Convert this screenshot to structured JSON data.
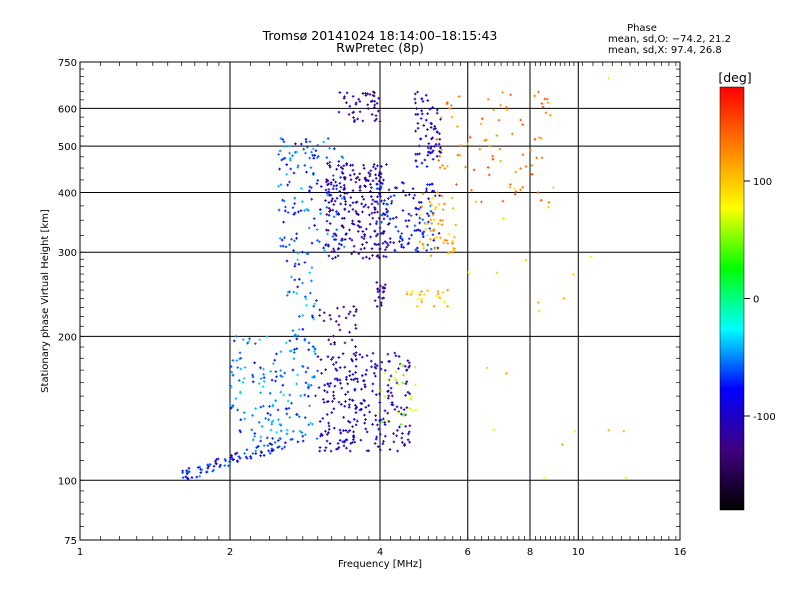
{
  "chart_data": {
    "type": "scatter",
    "title": "Tromsø 20141024 18:14:00–18:15:43",
    "subtitle": "RwPretec (8p)",
    "xlabel": "Frequency [MHz]",
    "ylabel": "Stationary phase Virtual Height [km]",
    "x_scale": "log",
    "y_scale": "log",
    "xlim": [
      1,
      16
    ],
    "ylim": [
      75,
      750
    ],
    "x_ticks": [
      1,
      2,
      4,
      6,
      8,
      10,
      16
    ],
    "x_tick_labels": [
      "1",
      "2",
      "4",
      "6",
      "8",
      "10",
      "16"
    ],
    "y_ticks": [
      75,
      100,
      200,
      300,
      400,
      500,
      600,
      750
    ],
    "y_tick_labels": [
      "75",
      "100",
      "200",
      "300",
      "400",
      "500",
      "600",
      "750"
    ],
    "x_gridlines": [
      2,
      4,
      6,
      8,
      10
    ],
    "y_gridlines": [
      100,
      200,
      300,
      400,
      500,
      600
    ],
    "grid": true,
    "phase_stats": {
      "heading": "Phase",
      "line_o": "mean, sd,O: −74.2, 21.2",
      "line_x": "mean, sd,X:  97.4, 26.8"
    },
    "colorbar": {
      "label": "[deg]",
      "range": [
        -180,
        180
      ],
      "ticks": [
        100,
        0,
        -100
      ],
      "tick_labels": [
        "100",
        "0",
        "-100"
      ],
      "colors": [
        "#ff0000",
        "#ff8000",
        "#ffff00",
        "#00ff00",
        "#00ffff",
        "#0000ff",
        "#400080",
        "#000000"
      ]
    },
    "clusters": [
      {
        "x": [
          1.6,
          2.6
        ],
        "y": [
          102,
          120
        ],
        "phase": -70,
        "n": 90,
        "shape": "trace"
      },
      {
        "x": [
          2.0,
          3.0
        ],
        "y": [
          120,
          200
        ],
        "phase": -55,
        "n": 170
      },
      {
        "x": [
          3.0,
          4.6
        ],
        "y": [
          115,
          185
        ],
        "phase": -100,
        "n": 260
      },
      {
        "x": [
          3.0,
          3.6
        ],
        "y": [
          190,
          235
        ],
        "phase": -130,
        "n": 30
      },
      {
        "x": [
          4.0,
          4.8
        ],
        "y": [
          130,
          175
        ],
        "phase": 60,
        "n": 25
      },
      {
        "x": [
          2.5,
          3.4
        ],
        "y": [
          300,
          520
        ],
        "phase": -60,
        "n": 140
      },
      {
        "x": [
          3.1,
          4.2
        ],
        "y": [
          290,
          460
        ],
        "phase": -110,
        "n": 240
      },
      {
        "x": [
          3.3,
          4.0
        ],
        "y": [
          560,
          650
        ],
        "phase": -115,
        "n": 45
      },
      {
        "x": [
          3.9,
          5.3
        ],
        "y": [
          300,
          420
        ],
        "phase": -80,
        "n": 120
      },
      {
        "x": [
          4.7,
          5.3
        ],
        "y": [
          450,
          650
        ],
        "phase": -95,
        "n": 70
      },
      {
        "x": [
          4.8,
          5.7
        ],
        "y": [
          290,
          400
        ],
        "phase": 110,
        "n": 55
      },
      {
        "x": [
          5.2,
          9.0
        ],
        "y": [
          380,
          650
        ],
        "phase": 130,
        "n": 80
      },
      {
        "x": [
          4.5,
          5.5
        ],
        "y": [
          230,
          250
        ],
        "phase": 100,
        "n": 25
      },
      {
        "x": [
          3.9,
          4.1
        ],
        "y": [
          230,
          260
        ],
        "phase": -110,
        "n": 20
      },
      {
        "x": [
          2.6,
          3.0
        ],
        "y": [
          200,
          300
        ],
        "phase": -55,
        "n": 40
      },
      {
        "x": [
          6.0,
          12.5
        ],
        "y": [
          100,
          700
        ],
        "phase": 90,
        "n": 25
      }
    ]
  }
}
